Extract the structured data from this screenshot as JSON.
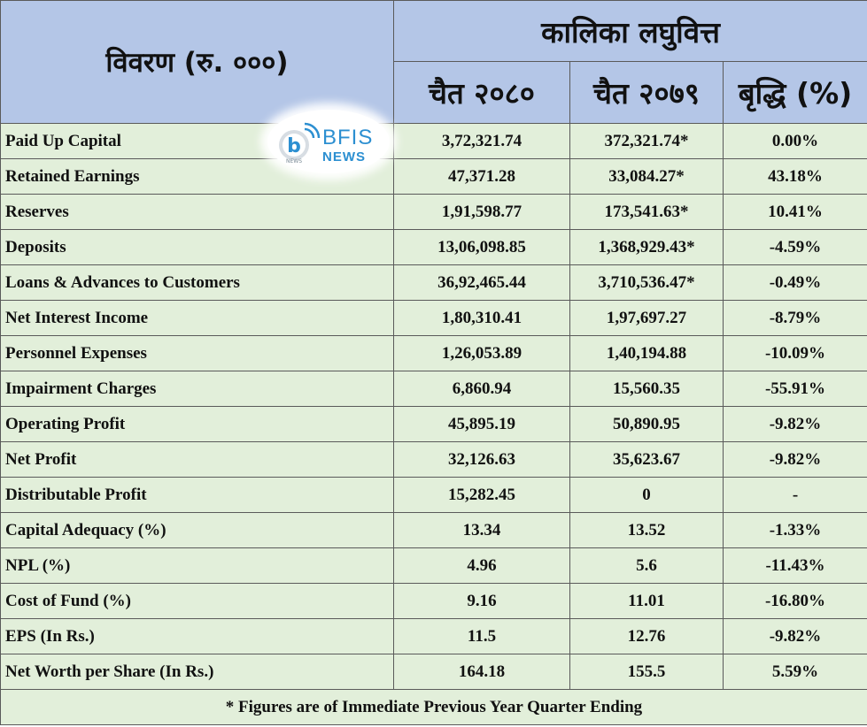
{
  "header": {
    "particulars": "विवरण (रु. ०००)",
    "company": "कालिका लघुवित्त",
    "col_current": "चैत २०८०",
    "col_previous": "चैत २०७९",
    "col_growth": "बृद्धि (%)"
  },
  "logo": {
    "line1": "BFIS",
    "line2": "NEWS",
    "mark_caption": "NEWS",
    "color": "#2c8fd1"
  },
  "rows": [
    {
      "label": "Paid Up Capital",
      "current": "3,72,321.74",
      "previous": "372,321.74*",
      "growth": "0.00%"
    },
    {
      "label": "Retained Earnings",
      "current": "47,371.28",
      "previous": "33,084.27*",
      "growth": "43.18%"
    },
    {
      "label": "Reserves",
      "current": "1,91,598.77",
      "previous": "173,541.63*",
      "growth": "10.41%"
    },
    {
      "label": "Deposits",
      "current": "13,06,098.85",
      "previous": "1,368,929.43*",
      "growth": "-4.59%"
    },
    {
      "label": "Loans & Advances to Customers",
      "current": "36,92,465.44",
      "previous": "3,710,536.47*",
      "growth": "-0.49%"
    },
    {
      "label": "Net Interest Income",
      "current": "1,80,310.41",
      "previous": "1,97,697.27",
      "growth": "-8.79%"
    },
    {
      "label": "Personnel Expenses",
      "current": "1,26,053.89",
      "previous": "1,40,194.88",
      "growth": "-10.09%"
    },
    {
      "label": "Impairment Charges",
      "current": "6,860.94",
      "previous": "15,560.35",
      "growth": "-55.91%"
    },
    {
      "label": "Operating Profit",
      "current": "45,895.19",
      "previous": "50,890.95",
      "growth": "-9.82%"
    },
    {
      "label": "Net Profit",
      "current": "32,126.63",
      "previous": "35,623.67",
      "growth": "-9.82%"
    },
    {
      "label": "Distributable Profit",
      "current": "15,282.45",
      "previous": "0",
      "growth": "-"
    },
    {
      "label": "Capital Adequacy (%)",
      "current": "13.34",
      "previous": "13.52",
      "growth": "-1.33%"
    },
    {
      "label": "NPL (%)",
      "current": "4.96",
      "previous": "5.6",
      "growth": "-11.43%"
    },
    {
      "label": "Cost of Fund (%)",
      "current": "9.16",
      "previous": "11.01",
      "growth": "-16.80%"
    },
    {
      "label": "EPS (In Rs.)",
      "current": "11.5",
      "previous": "12.76",
      "growth": "-9.82%"
    },
    {
      "label": "Net Worth per Share (In Rs.)",
      "current": "164.18",
      "previous": "155.5",
      "growth": "5.59%"
    }
  ],
  "footer": "* Figures are of Immediate Previous Year Quarter Ending",
  "colors": {
    "header_bg": "#b4c6e7",
    "body_bg": "#e2efda",
    "border": "#5a5a5a"
  }
}
